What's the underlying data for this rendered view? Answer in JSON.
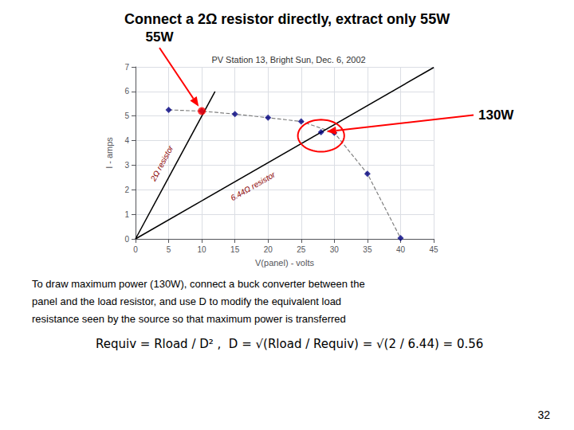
{
  "chart_data": {
    "type": "line",
    "title": "Connect a 2Ω resistor directly, extract only 55W",
    "subtitle": "PV Station 13, Bright Sun, Dec. 6, 2002",
    "x_label": "V(panel) - volts",
    "y_label": "I - amps",
    "xlim": [
      0,
      45
    ],
    "ylim": [
      0,
      7
    ],
    "xticks": [
      0,
      5,
      10,
      15,
      20,
      25,
      30,
      35,
      40,
      45
    ],
    "yticks": [
      0,
      1,
      2,
      3,
      4,
      5,
      6,
      7
    ],
    "grid": true,
    "series": [
      {
        "type": "line",
        "x": [
          5,
          10,
          15,
          20,
          25,
          30,
          35,
          40
        ],
        "values": [
          5.25,
          5.2,
          5.08,
          4.93,
          4.78,
          4.32,
          2.65,
          0.03
        ],
        "color": "gray",
        "line_style": "dashed"
      },
      {
        "type": "scatter",
        "x": [
          5,
          10,
          15,
          20,
          25,
          30,
          35,
          40
        ],
        "values": [
          5.25,
          5.2,
          5.08,
          4.93,
          4.78,
          4.32,
          2.65,
          0.03
        ],
        "color": "navy",
        "marker": "diamond"
      },
      {
        "type": "line",
        "x": [
          0,
          12
        ],
        "values": [
          0,
          6
        ],
        "color": "black",
        "line_style": "solid"
      },
      {
        "type": "line",
        "x": [
          0,
          45
        ],
        "values": [
          0,
          6.975
        ],
        "color": "black",
        "line_style": "solid"
      },
      {
        "type": "scatter",
        "x": [
          10
        ],
        "values": [
          5.2
        ],
        "color": "red",
        "marker": "circle"
      },
      {
        "type": "scatter",
        "x": [
          28
        ],
        "values": [
          4.34
        ],
        "color": "navy",
        "marker": "diamond"
      }
    ],
    "annotations": [
      {
        "text": "2Ω resistor",
        "x": 4.5,
        "y": 3.0,
        "color": "darkred"
      },
      {
        "text": "6.44Ω resistor",
        "x": 18,
        "y": 2.0,
        "color": "darkred"
      }
    ],
    "callouts": [
      {
        "text": "55W",
        "x": 10,
        "y": 5.2,
        "color": "red"
      },
      {
        "text": "130W",
        "x": 28,
        "y": 4.34,
        "color": "red"
      }
    ],
    "ellipse": {
      "x": 28,
      "y": 4.2,
      "width": 7,
      "height": 1.3,
      "color": "red"
    },
    "body_text": [
      "To draw maximum power (130W), connect a buck converter between the",
      "panel and the load resistor, and use D to modify the equivalent load",
      "resistance seen by the source so that maximum power is transferred"
    ],
    "formula": "Requiv = Rload / D² ,  D = √(Rload / Requiv) = √(2 / 6.44) = 0.56",
    "page_number": "32"
  }
}
